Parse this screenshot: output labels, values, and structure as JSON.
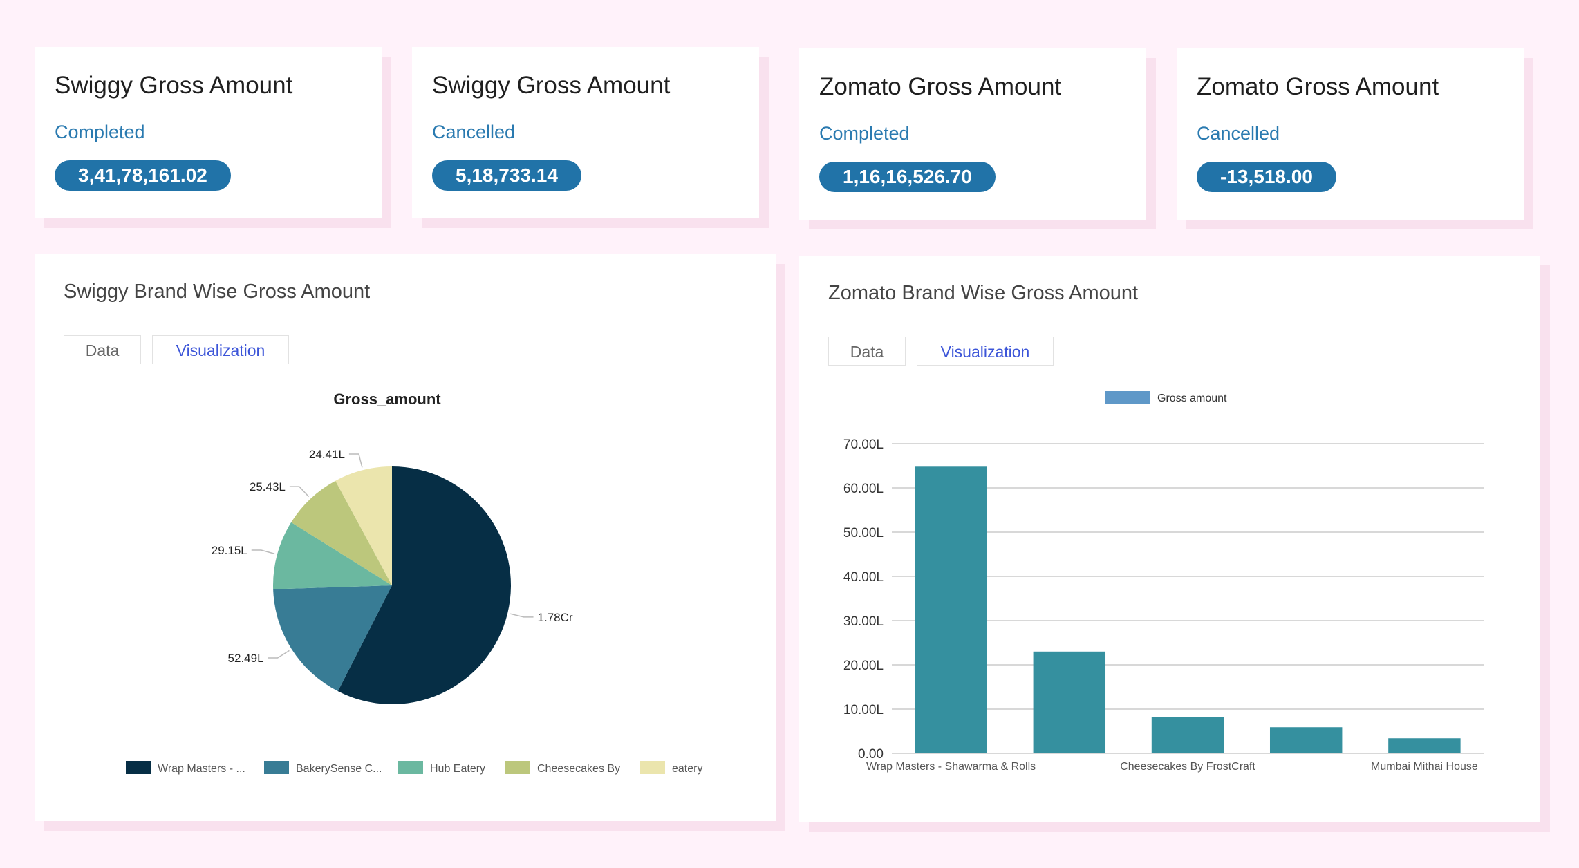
{
  "kpis": [
    {
      "title": "Swiggy Gross Amount",
      "status": "Completed",
      "value": "3,41,78,161.02"
    },
    {
      "title": "Swiggy Gross Amount",
      "status": "Cancelled",
      "value": "5,18,733.14"
    },
    {
      "title": "Zomato Gross Amount",
      "status": "Completed",
      "value": "1,16,16,526.70"
    },
    {
      "title": "Zomato Gross Amount",
      "status": "Cancelled",
      "value": "-13,518.00"
    }
  ],
  "swiggy_panel": {
    "title": "Swiggy Brand Wise Gross Amount",
    "tabs": {
      "data": "Data",
      "visualization": "Visualization"
    }
  },
  "zomato_panel": {
    "title": "Zomato Brand Wise Gross Amount",
    "tabs": {
      "data": "Data",
      "visualization": "Visualization"
    }
  },
  "colors": {
    "accent_badge": "#2173a8",
    "status_text": "#2a7ab0",
    "bar": "#35909f",
    "pie": [
      "#062e45",
      "#387c95",
      "#6bb8a0",
      "#bcc77c",
      "#ebe5ad"
    ]
  },
  "chart_data": [
    {
      "type": "pie",
      "title": "Gross_amount",
      "categories": [
        "Wrap Masters - ...",
        "BakerySense C...",
        "Hub Eatery",
        "Cheesecakes By",
        "eatery"
      ],
      "values": [
        17800000,
        5249000,
        2915000,
        2543000,
        2441000
      ],
      "data_labels": [
        "1.78Cr",
        "52.49L",
        "29.15L",
        "25.43L",
        "24.41L"
      ],
      "legend": "bottom"
    },
    {
      "type": "bar",
      "series_name": "Gross amount",
      "categories": [
        "Wrap Masters - Shawarma & Rolls",
        "",
        "Cheesecakes By FrostCraft",
        "",
        "Mumbai Mithai House"
      ],
      "values": [
        6480000,
        2300000,
        820000,
        590000,
        340000
      ],
      "y_ticks": [
        "0.00",
        "10.00L",
        "20.00L",
        "30.00L",
        "40.00L",
        "50.00L",
        "60.00L",
        "70.00L"
      ],
      "ylim": [
        0,
        7000000
      ],
      "legend": "top",
      "grid": true
    }
  ]
}
